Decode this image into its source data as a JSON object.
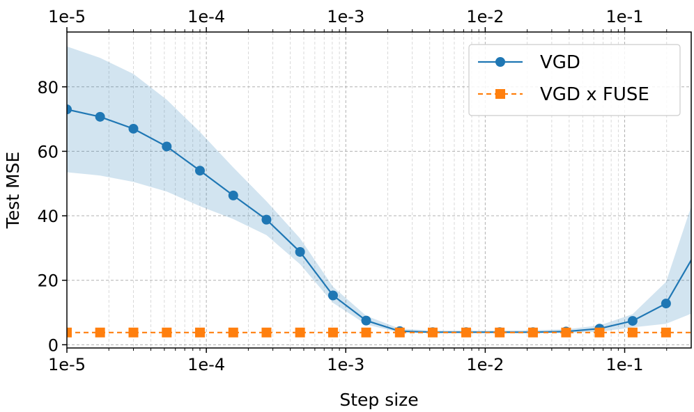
{
  "chart_data": {
    "type": "line",
    "xlabel": "Step size",
    "ylabel": "Test MSE",
    "xscale": "log",
    "xlim": [
      1e-05,
      0.3
    ],
    "ylim": [
      -1,
      97
    ],
    "grid": true,
    "legend_position": "top-right",
    "x_tick_labels": [
      "1e-5",
      "1e-4",
      "1e-3",
      "1e-2",
      "1e-1"
    ],
    "x_tick_values": [
      1e-05,
      0.0001,
      0.001,
      0.01,
      0.1
    ],
    "y_tick_labels": [
      "0",
      "20",
      "40",
      "60",
      "80"
    ],
    "y_tick_values": [
      0,
      20,
      40,
      60,
      80
    ],
    "x": [
      1e-05,
      1.73e-05,
      3e-05,
      5.2e-05,
      9e-05,
      0.000156,
      0.00027,
      0.00047,
      0.00081,
      0.0014,
      0.00244,
      0.0042,
      0.0073,
      0.0127,
      0.022,
      0.038,
      0.066,
      0.114,
      0.198,
      0.34
    ],
    "series": [
      {
        "name": "VGD",
        "color": "#1f77b4",
        "marker": "circle",
        "line_style": "solid",
        "values": [
          73,
          70.7,
          67,
          61.5,
          54,
          46.3,
          38.8,
          28.8,
          15.3,
          7.5,
          4.2,
          3.9,
          3.9,
          3.9,
          3.9,
          4.1,
          5,
          7.4,
          12.8,
          30.3
        ],
        "band_upper": [
          92.5,
          89,
          84,
          76,
          66,
          55,
          44.5,
          33,
          18,
          9,
          5,
          4.4,
          4.4,
          4.4,
          4.5,
          4.8,
          6,
          9.5,
          19.5,
          50
        ],
        "band_lower": [
          53.5,
          52.5,
          50.5,
          47.5,
          43,
          39,
          34,
          25,
          13,
          6.3,
          3.8,
          3.6,
          3.6,
          3.6,
          3.6,
          3.6,
          4,
          5.4,
          6.5,
          10.6
        ]
      },
      {
        "name": "VGD x FUSE",
        "color": "#ff7f0e",
        "marker": "square",
        "line_style": "dashed",
        "values": [
          3.8,
          3.8,
          3.8,
          3.8,
          3.8,
          3.8,
          3.8,
          3.8,
          3.8,
          3.8,
          3.8,
          3.8,
          3.8,
          3.8,
          3.8,
          3.8,
          3.8,
          3.8,
          3.8,
          3.8
        ]
      }
    ]
  }
}
